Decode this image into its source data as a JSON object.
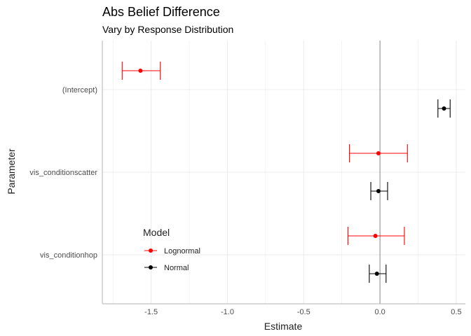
{
  "chart_data": {
    "type": "scatter",
    "title": "Abs Belief Difference",
    "subtitle": "Vary by Response Distribution",
    "xlabel": "Estimate",
    "ylabel": "Parameter",
    "xlim": [
      -1.82,
      0.56
    ],
    "x_ticks": [
      -1.5,
      -1.0,
      -0.5,
      0.0,
      0.5
    ],
    "x_tick_labels": [
      "-1.5",
      "-1.0",
      "-0.5",
      "0.0",
      "0.5"
    ],
    "categories": [
      "(Intercept)",
      "vis_conditionscatter",
      "vis_conditionhop"
    ],
    "reference_line_x": 0,
    "grid": true,
    "legend": {
      "title": "Model",
      "placement": "inside-bottom-left"
    },
    "series": [
      {
        "name": "Lognormal",
        "color": "#ff0000",
        "points": [
          {
            "category": "(Intercept)",
            "estimate": -1.57,
            "lower": -1.69,
            "upper": -1.44
          },
          {
            "category": "vis_conditionscatter",
            "estimate": -0.01,
            "lower": -0.2,
            "upper": 0.18
          },
          {
            "category": "vis_conditionhop",
            "estimate": -0.03,
            "lower": -0.21,
            "upper": 0.16
          }
        ]
      },
      {
        "name": "Normal",
        "color": "#000000",
        "points": [
          {
            "category": "(Intercept)",
            "estimate": 0.42,
            "lower": 0.38,
            "upper": 0.46
          },
          {
            "category": "vis_conditionscatter",
            "estimate": -0.01,
            "lower": -0.06,
            "upper": 0.05
          },
          {
            "category": "vis_conditionhop",
            "estimate": -0.02,
            "lower": -0.07,
            "upper": 0.04
          }
        ]
      }
    ]
  }
}
